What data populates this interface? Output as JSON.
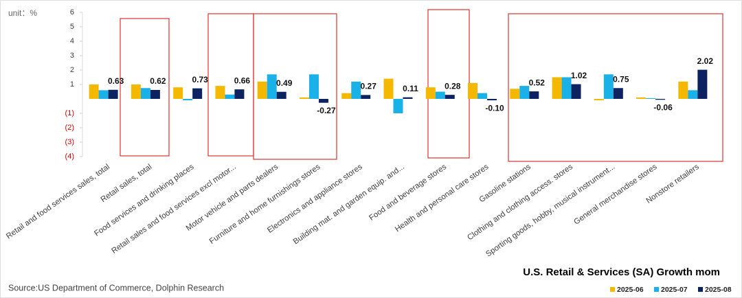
{
  "chart_data": {
    "type": "bar",
    "title": "U.S. Retail & Services (SA) Growth mom",
    "unit": "unit：%",
    "source": "Source:US Department of Commerce, Dolphin Research",
    "categories": [
      "Retail and food services sales, total",
      "Retail sales, total",
      "Food services and drinking places",
      "Retail sales and food services excl motor...",
      "Motor vehicle and parts dealers",
      "Furniture and home furnishings stores",
      "Electronics and appliance stores",
      "Building mat. and garden equip. and...",
      "Food and beverage stores",
      "Health and personal care stores",
      "Gasoline stations",
      "Clothing and clothing access. stores",
      "Sporting goods, hobby, musical instrument...",
      "General merchandise stores",
      "Nonstore retailers"
    ],
    "series": [
      {
        "name": "2025-06",
        "color": "#f5b800",
        "values": [
          1.0,
          1.0,
          0.8,
          0.9,
          1.2,
          0.1,
          0.4,
          1.4,
          0.8,
          1.1,
          0.7,
          1.5,
          -0.1,
          0.1,
          1.2
        ]
      },
      {
        "name": "2025-07",
        "color": "#1ab0e8",
        "values": [
          0.6,
          0.75,
          -0.1,
          0.3,
          1.7,
          1.7,
          1.2,
          -1.0,
          0.5,
          0.4,
          0.9,
          1.5,
          1.7,
          0.05,
          0.6
        ]
      },
      {
        "name": "2025-08",
        "color": "#0d2260",
        "values": [
          0.63,
          0.62,
          0.73,
          0.66,
          0.49,
          -0.27,
          0.27,
          0.11,
          0.28,
          -0.1,
          0.52,
          1.02,
          0.75,
          -0.06,
          2.02
        ],
        "value_labels": [
          "0.63",
          "0.62",
          "0.73",
          "0.66",
          "0.49",
          "-0.27",
          "0.27",
          "0.11",
          "0.28",
          "-0.10",
          "0.52",
          "1.02",
          "0.75",
          "-0.06",
          "2.02"
        ]
      }
    ],
    "ylim": [
      -4,
      6
    ],
    "yticks": [
      {
        "value": -4,
        "label": "(4)"
      },
      {
        "value": -3,
        "label": "(3)"
      },
      {
        "value": -2,
        "label": "(2)"
      },
      {
        "value": -1,
        "label": "(1)"
      },
      1,
      2,
      3,
      4,
      5,
      6
    ],
    "grid": false
  }
}
